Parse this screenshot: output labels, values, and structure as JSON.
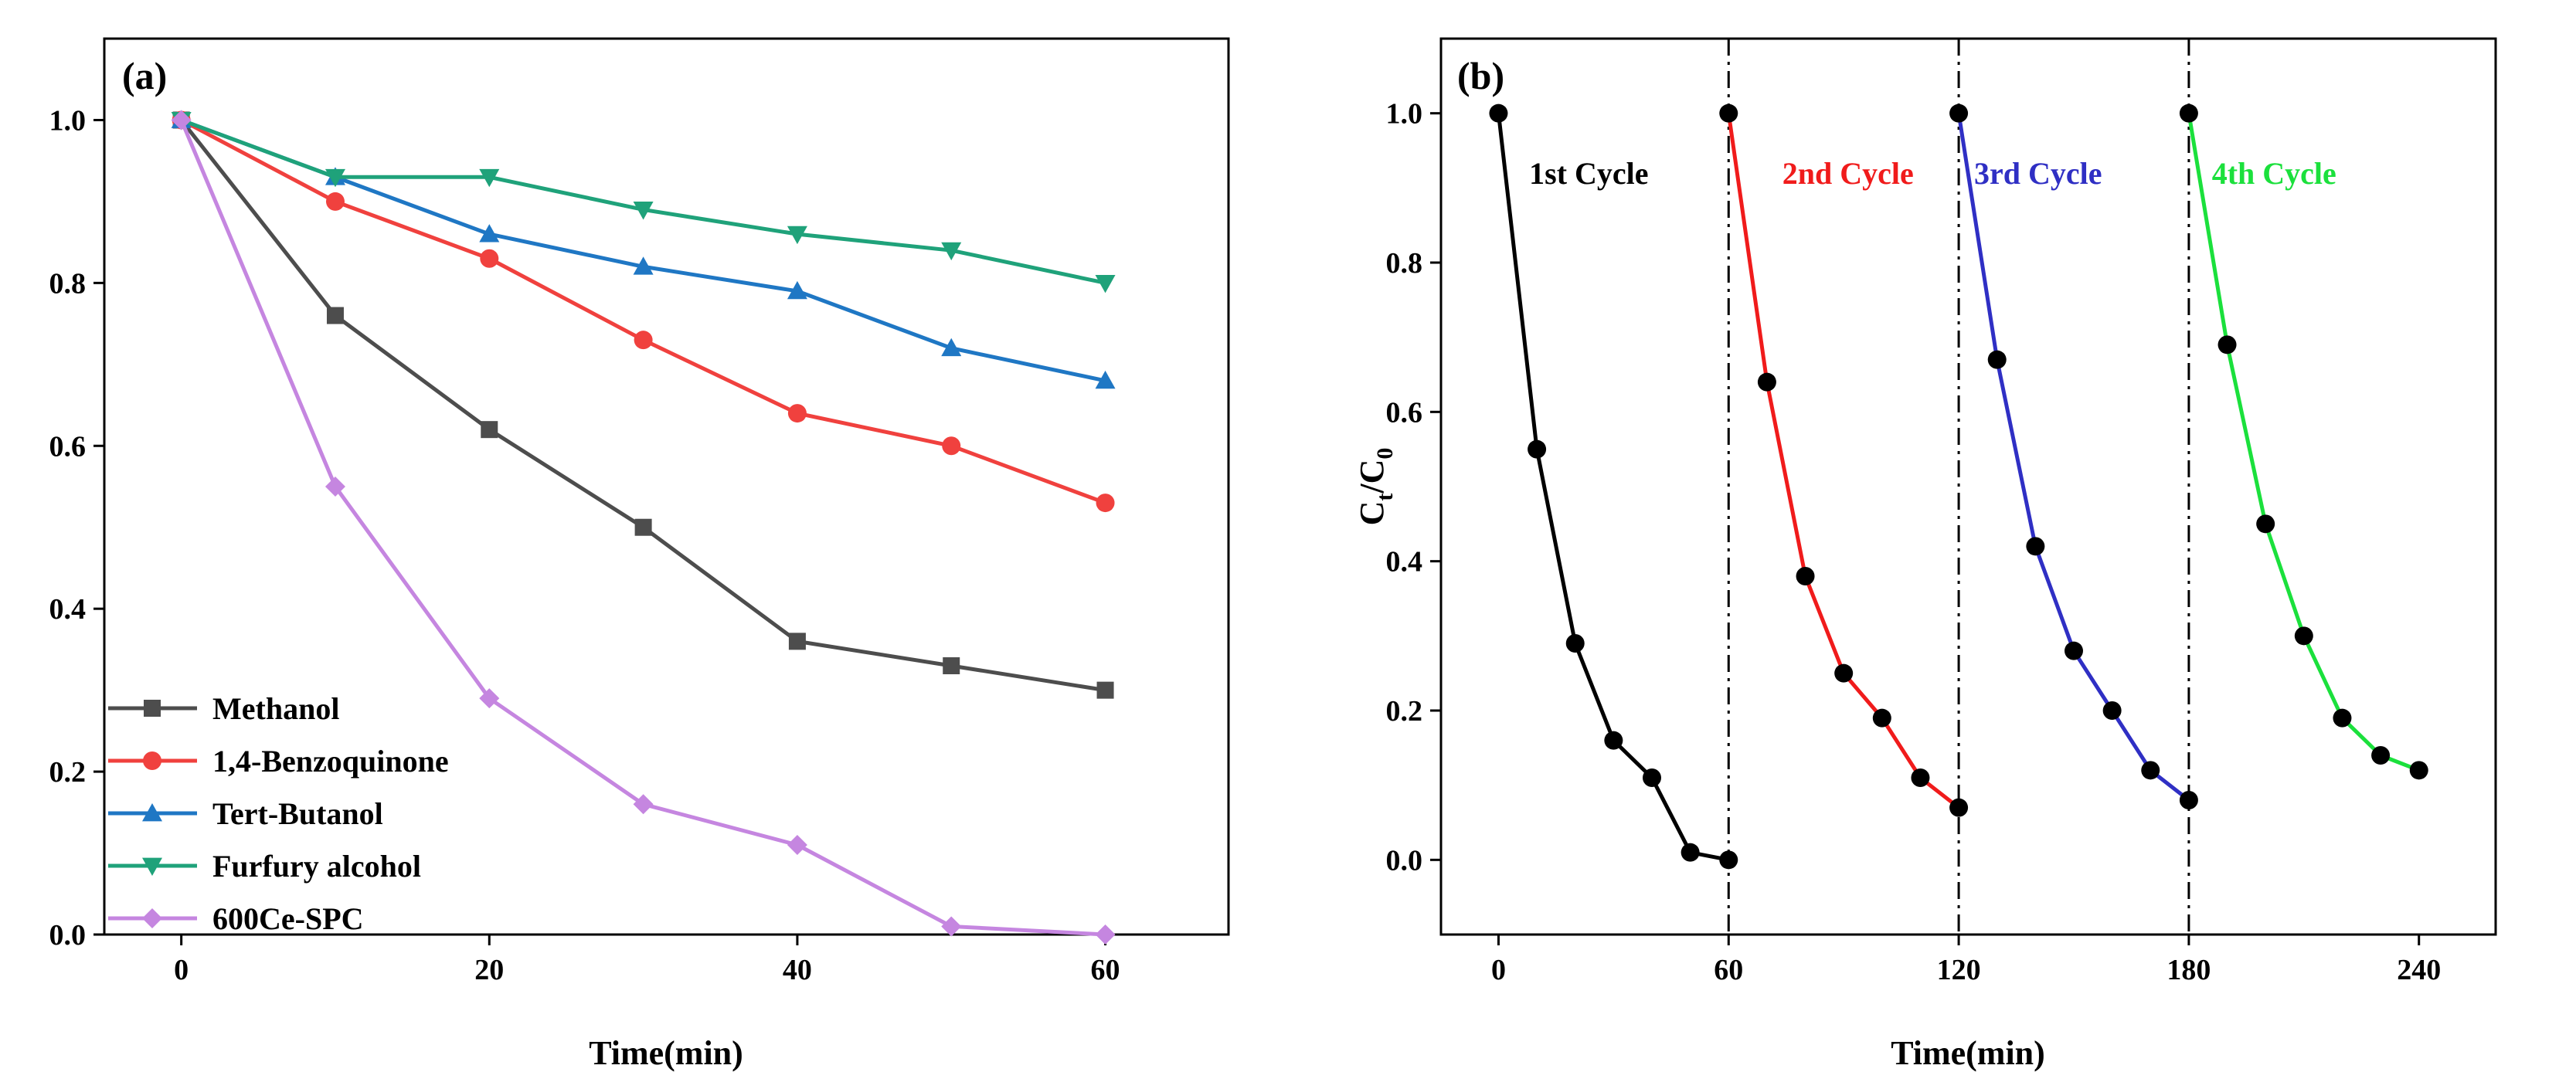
{
  "chart_data": [
    {
      "type": "line",
      "panel_label": "(a)",
      "xlabel": "Time(min)",
      "ylabel": "",
      "xlim": [
        -5,
        68
      ],
      "ylim": [
        0,
        1.1
      ],
      "xticks": [
        0,
        20,
        40,
        60
      ],
      "yticks": [
        0.0,
        0.2,
        0.4,
        0.6,
        0.8,
        1.0
      ],
      "xtick_labels": [
        "0",
        "20",
        "40",
        "60"
      ],
      "ytick_labels": [
        "0.0",
        "0.2",
        "0.4",
        "0.6",
        "0.8",
        "1.0"
      ],
      "legend_position": "bottom-left",
      "x": [
        0,
        10,
        20,
        30,
        40,
        50,
        60
      ],
      "series": [
        {
          "name": "Methanol",
          "color": "#4d4d4d",
          "marker": "square",
          "values": [
            1.0,
            0.76,
            0.62,
            0.5,
            0.36,
            0.33,
            0.3
          ]
        },
        {
          "name": "1,4-Benzoquinone",
          "color": "#f0413e",
          "marker": "circle",
          "values": [
            1.0,
            0.9,
            0.83,
            0.73,
            0.64,
            0.6,
            0.53
          ]
        },
        {
          "name": "Tert-Butanol",
          "color": "#1f77c4",
          "marker": "triangle-up",
          "values": [
            1.0,
            0.93,
            0.86,
            0.82,
            0.79,
            0.72,
            0.68
          ]
        },
        {
          "name": "Furfury alcohol",
          "color": "#1fa27a",
          "marker": "triangle-down",
          "values": [
            1.0,
            0.93,
            0.93,
            0.89,
            0.86,
            0.84,
            0.8
          ]
        },
        {
          "name": "600Ce-SPC",
          "color": "#c586e0",
          "marker": "diamond",
          "values": [
            1.0,
            0.55,
            0.29,
            0.16,
            0.11,
            0.01,
            0.0
          ]
        }
      ]
    },
    {
      "type": "line",
      "panel_label": "(b)",
      "xlabel": "Time(min)",
      "ylabel_main": "C",
      "ylabel_sub_t": "t",
      "ylabel_slash": "/C",
      "ylabel_sub_0": "0",
      "xlim": [
        -15,
        260
      ],
      "ylim": [
        -0.1,
        1.1
      ],
      "xticks": [
        0,
        60,
        120,
        180,
        240
      ],
      "yticks": [
        0.0,
        0.2,
        0.4,
        0.6,
        0.8,
        1.0
      ],
      "xtick_labels": [
        "0",
        "60",
        "120",
        "180",
        "240"
      ],
      "ytick_labels": [
        "0.0",
        "0.2",
        "0.4",
        "0.6",
        "0.8",
        "1.0"
      ],
      "dividers": [
        60,
        120,
        180
      ],
      "series": [
        {
          "name": "1st Cycle",
          "color": "#000000",
          "label_x": 8,
          "label_y": 0.92,
          "x": [
            0,
            10,
            20,
            30,
            40,
            50,
            60
          ],
          "values": [
            1.0,
            0.55,
            0.29,
            0.16,
            0.11,
            0.01,
            0.0
          ]
        },
        {
          "name": "2nd Cycle",
          "color": "#f01b1b",
          "label_x": 74,
          "label_y": 0.92,
          "x": [
            60,
            70,
            80,
            90,
            100,
            110,
            120
          ],
          "values": [
            1.0,
            0.64,
            0.38,
            0.25,
            0.19,
            0.11,
            0.07
          ]
        },
        {
          "name": "3rd Cycle",
          "color": "#2f2fc4",
          "label_x": 124,
          "label_y": 0.92,
          "x": [
            120,
            130,
            140,
            150,
            160,
            170,
            180
          ],
          "values": [
            1.0,
            0.67,
            0.42,
            0.28,
            0.2,
            0.12,
            0.08
          ]
        },
        {
          "name": "4th Cycle",
          "color": "#1be03c",
          "label_x": 186,
          "label_y": 0.92,
          "x": [
            180,
            190,
            200,
            210,
            220,
            230,
            240
          ],
          "values": [
            1.0,
            0.69,
            0.45,
            0.3,
            0.19,
            0.14,
            0.12
          ]
        }
      ]
    }
  ]
}
